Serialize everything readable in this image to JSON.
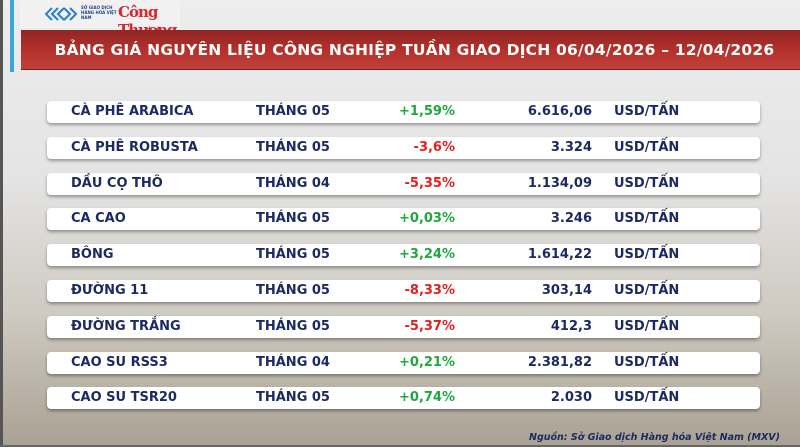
{
  "header": {
    "logo_mxv_text": "SỞ GIAO DỊCH HÀNG HÓA VIỆT NAM",
    "logo_ct": "Công Thương",
    "title": "BẢNG GIÁ NGUYÊN LIỆU CÔNG NGHIỆP TUẦN GIAO DỊCH 06/04/2026 – 12/04/2026"
  },
  "colors": {
    "up": "#1ea83d",
    "down": "#e3201f",
    "text": "#1b2a63",
    "banner": "#b3302b"
  },
  "rows": [
    {
      "name": "CÀ PHÊ ARABICA",
      "month": "THÁNG 05",
      "change": "+1,59%",
      "dir": "up",
      "price": "6.616,06",
      "unit": "USD/TẤN"
    },
    {
      "name": "CÀ PHÊ ROBUSTA",
      "month": "THÁNG 05",
      "change": "-3,6%",
      "dir": "down",
      "price": "3.324",
      "unit": "USD/TẤN"
    },
    {
      "name": "DẦU CỌ THÔ",
      "month": "THÁNG 04",
      "change": "-5,35%",
      "dir": "down",
      "price": "1.134,09",
      "unit": "USD/TẤN"
    },
    {
      "name": "CA CAO",
      "month": "THÁNG 05",
      "change": "+0,03%",
      "dir": "up",
      "price": "3.246",
      "unit": "USD/TẤN"
    },
    {
      "name": "BÔNG",
      "month": "THÁNG 05",
      "change": "+3,24%",
      "dir": "up",
      "price": "1.614,22",
      "unit": "USD/TẤN"
    },
    {
      "name": "ĐƯỜNG 11",
      "month": "THÁNG 05",
      "change": "-8,33%",
      "dir": "down",
      "price": "303,14",
      "unit": "USD/TẤN"
    },
    {
      "name": "ĐƯỜNG TRẮNG",
      "month": "THÁNG 05",
      "change": "-5,37%",
      "dir": "down",
      "price": "412,3",
      "unit": "USD/TẤN"
    },
    {
      "name": "CAO SU RSS3",
      "month": "THÁNG 04",
      "change": "+0,21%",
      "dir": "up",
      "price": "2.381,82",
      "unit": "USD/TẤN"
    },
    {
      "name": "CAO SU TSR20",
      "month": "THÁNG 05",
      "change": "+0,74%",
      "dir": "up",
      "price": "2.030",
      "unit": "USD/TẤN"
    }
  ],
  "footer": {
    "source": "Nguồn: Sở Giao dịch Hàng hóa Việt Nam (MXV)"
  }
}
